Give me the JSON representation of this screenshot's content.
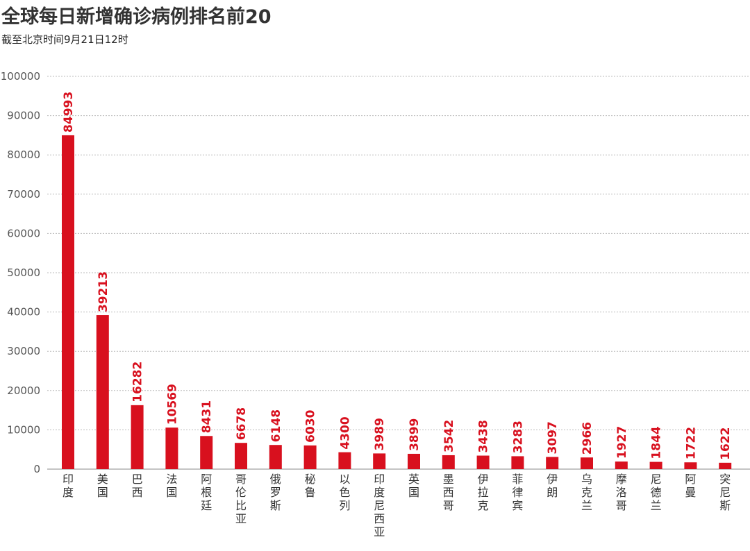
{
  "title": "全球每日新增确诊病例排名前20",
  "subtitle": "截至北京时间9月21日12时",
  "colors": {
    "bar": "#d8101e",
    "grid": "#bbbbbb",
    "axis": "#888888"
  },
  "chart_data": {
    "type": "bar",
    "title": "全球每日新增确诊病例排名前20",
    "subtitle": "截至北京时间9月21日12时",
    "xlabel": "",
    "ylabel": "",
    "ylim": [
      0,
      100000
    ],
    "yticks": [
      0,
      10000,
      20000,
      30000,
      40000,
      50000,
      60000,
      70000,
      80000,
      90000,
      100000
    ],
    "grid": true,
    "categories": [
      "印度",
      "美国",
      "巴西",
      "法国",
      "阿根廷",
      "哥伦比亚",
      "俄罗斯",
      "秘鲁",
      "以色列",
      "印度尼西亚",
      "英国",
      "墨西哥",
      "伊拉克",
      "菲律宾",
      "伊朗",
      "乌克兰",
      "摩洛哥",
      "尼德兰",
      "阿曼",
      "突尼斯"
    ],
    "values": [
      84993,
      39213,
      16282,
      10569,
      8431,
      6678,
      6148,
      6030,
      4300,
      3989,
      3899,
      3542,
      3438,
      3283,
      3097,
      2966,
      1927,
      1844,
      1722,
      1622
    ]
  }
}
